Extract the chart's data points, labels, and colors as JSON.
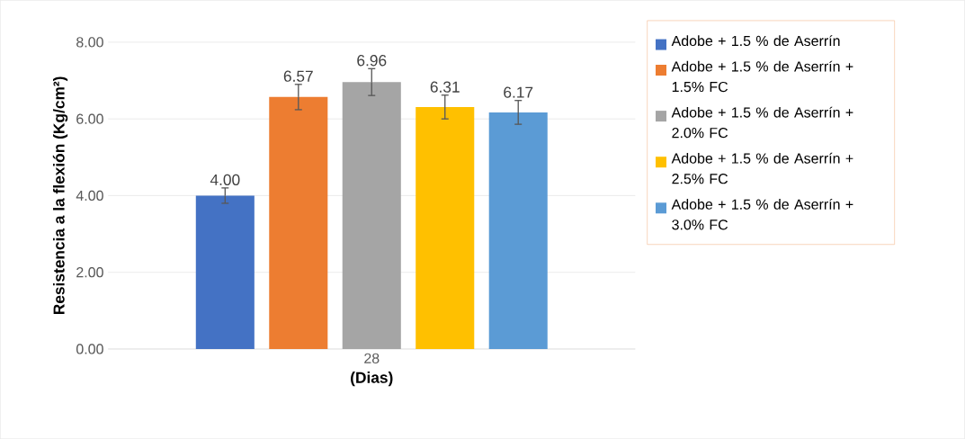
{
  "chart_data": {
    "type": "bar",
    "xlabel": "(Dias)",
    "ylabel": "Resistencia a la flexión (Kg/cm²)",
    "categories": [
      "28"
    ],
    "series": [
      {
        "name": "Adobe + 1.5 % de Aserrín",
        "color": "#4472c4",
        "values": [
          4.0
        ],
        "errors": [
          0.2
        ],
        "value_labels": [
          "4.00"
        ]
      },
      {
        "name": "Adobe + 1.5 % de Aserrín + 1.5% FC",
        "color": "#ed7d31",
        "values": [
          6.57
        ],
        "errors": [
          0.33
        ],
        "value_labels": [
          "6.57"
        ]
      },
      {
        "name": "Adobe + 1.5 % de Aserrín + 2.0% FC",
        "color": "#a5a5a5",
        "values": [
          6.96
        ],
        "errors": [
          0.35
        ],
        "value_labels": [
          "6.96"
        ]
      },
      {
        "name": "Adobe + 1.5 % de Aserrín + 2.5% FC",
        "color": "#ffc000",
        "values": [
          6.31
        ],
        "errors": [
          0.31
        ],
        "value_labels": [
          "6.31"
        ]
      },
      {
        "name": "Adobe + 1.5 % de Aserrín + 3.0% FC",
        "color": "#5b9bd5",
        "values": [
          6.17
        ],
        "errors": [
          0.31
        ],
        "value_labels": [
          "6.17"
        ]
      }
    ],
    "ylim": [
      0,
      8
    ],
    "yticks": [
      {
        "value": 0,
        "label": "0.00"
      },
      {
        "value": 2,
        "label": "2.00"
      },
      {
        "value": 4,
        "label": "4.00"
      },
      {
        "value": 6,
        "label": "6.00"
      },
      {
        "value": 8,
        "label": "8.00"
      }
    ],
    "grid": "y",
    "legend": "right"
  }
}
